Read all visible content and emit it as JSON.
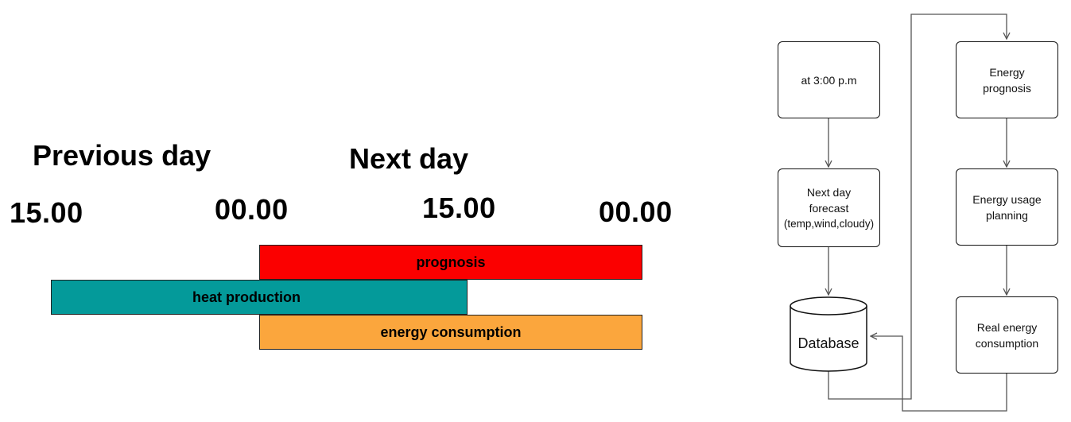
{
  "timeline": {
    "headings": {
      "previous_day": "Previous day",
      "next_day": "Next day"
    },
    "times": [
      "15.00",
      "00.00",
      "15.00",
      "00.00"
    ],
    "bars": [
      {
        "label": "prognosis",
        "color": "#fb0000"
      },
      {
        "label": "heat production",
        "color": "#049a9a"
      },
      {
        "label": "energy consumption",
        "color": "#fba63d"
      }
    ]
  },
  "flowchart": {
    "nodes": {
      "trigger": "at 3:00 p.m",
      "forecast_line1": "Next day",
      "forecast_line2": "forecast",
      "forecast_line3": "(temp,wind,cloudy)",
      "database": "Database",
      "prognosis_line1": "Energy",
      "prognosis_line2": "prognosis",
      "planning_line1": "Energy usage",
      "planning_line2": "planning",
      "real_line1": "Real energy",
      "real_line2": "consumption"
    },
    "line_color": "#555555"
  }
}
